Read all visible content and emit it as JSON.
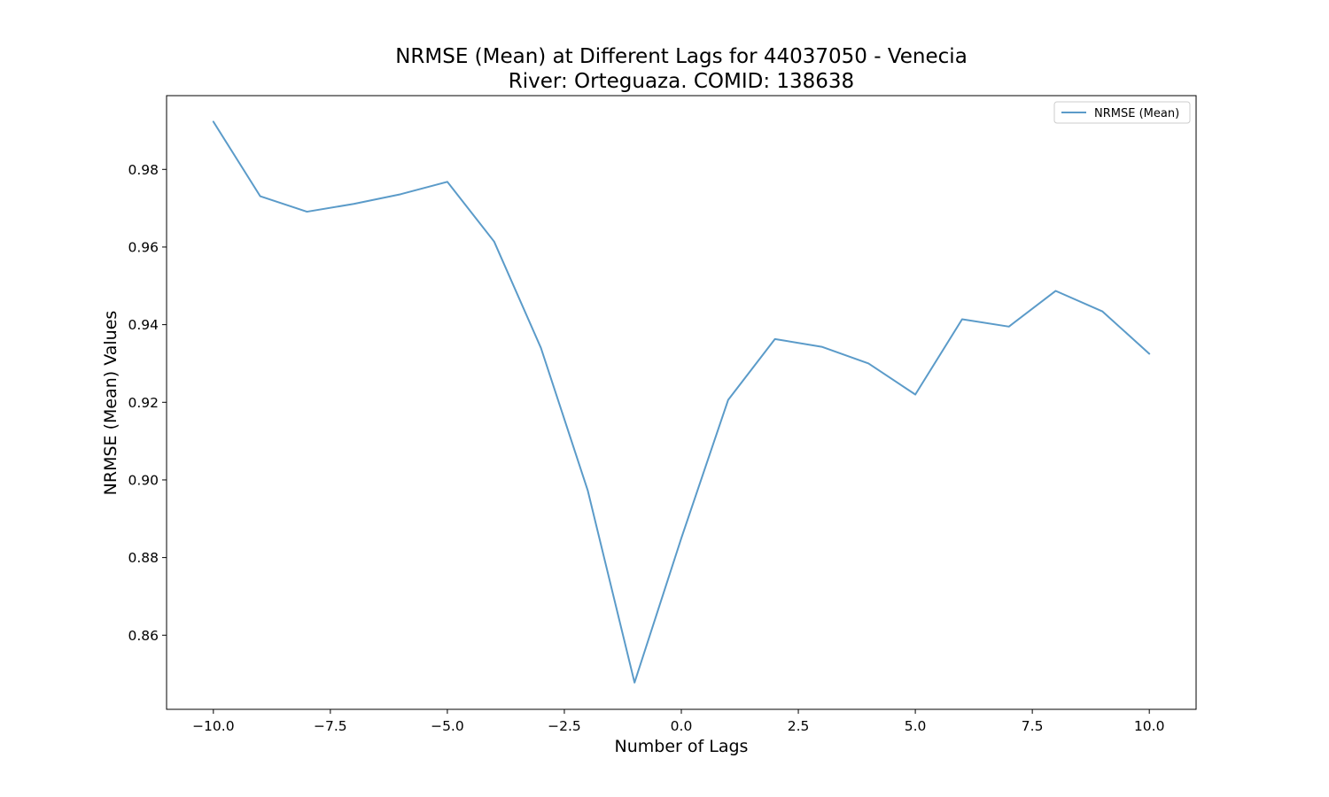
{
  "chart_data": {
    "type": "line",
    "title": "NRMSE (Mean) at Different Lags for 44037050 - Venecia",
    "subtitle": "River: Orteguaza. COMID: 138638",
    "xlabel": "Number of Lags",
    "ylabel": "NRMSE (Mean) Values",
    "xlim": [
      -11,
      11
    ],
    "ylim": [
      0.8409,
      0.999
    ],
    "xticks": [
      -10.0,
      -7.5,
      -5.0,
      -2.5,
      0.0,
      2.5,
      5.0,
      7.5,
      10.0
    ],
    "xtick_labels": [
      "−10.0",
      "−7.5",
      "−5.0",
      "−2.5",
      "0.0",
      "2.5",
      "5.0",
      "7.5",
      "10.0"
    ],
    "yticks": [
      0.86,
      0.88,
      0.9,
      0.92,
      0.94,
      0.96,
      0.98
    ],
    "ytick_labels": [
      "0.86",
      "0.88",
      "0.90",
      "0.92",
      "0.94",
      "0.96",
      "0.98"
    ],
    "grid": false,
    "legend_position": "top-right",
    "series": [
      {
        "name": "NRMSE (Mean)",
        "color": "#5b9bc9",
        "x": [
          -10,
          -9,
          -8,
          -7,
          -6,
          -5,
          -4,
          -3,
          -2,
          -1,
          0,
          1,
          2,
          3,
          4,
          5,
          6,
          7,
          8,
          9,
          10
        ],
        "y": [
          0.9923,
          0.9731,
          0.9691,
          0.9711,
          0.9736,
          0.9768,
          0.9614,
          0.934,
          0.8973,
          0.8478,
          0.885,
          0.9206,
          0.9363,
          0.9343,
          0.93,
          0.922,
          0.9414,
          0.9395,
          0.9487,
          0.9434,
          0.9325
        ]
      }
    ]
  }
}
